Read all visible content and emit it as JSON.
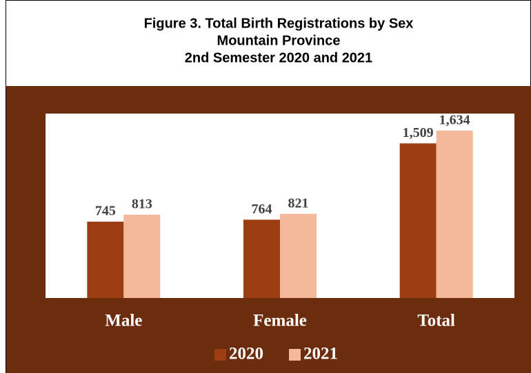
{
  "chart_data": {
    "type": "bar",
    "title": [
      "Figure 3. Total Birth Registrations by Sex",
      "Mountain Province",
      "2nd Semester 2020 and 2021"
    ],
    "categories": [
      "Male",
      "Female",
      "Total"
    ],
    "series": [
      {
        "name": "2020",
        "color": "#9c3d12",
        "values": [
          745,
          764,
          1509
        ],
        "value_labels": [
          "745",
          "764",
          "1,509"
        ]
      },
      {
        "name": "2021",
        "color": "#f4b99b",
        "values": [
          813,
          821,
          1634
        ],
        "value_labels": [
          "813",
          "821",
          "1,634"
        ]
      }
    ],
    "ylim": [
      0,
      1800
    ]
  }
}
